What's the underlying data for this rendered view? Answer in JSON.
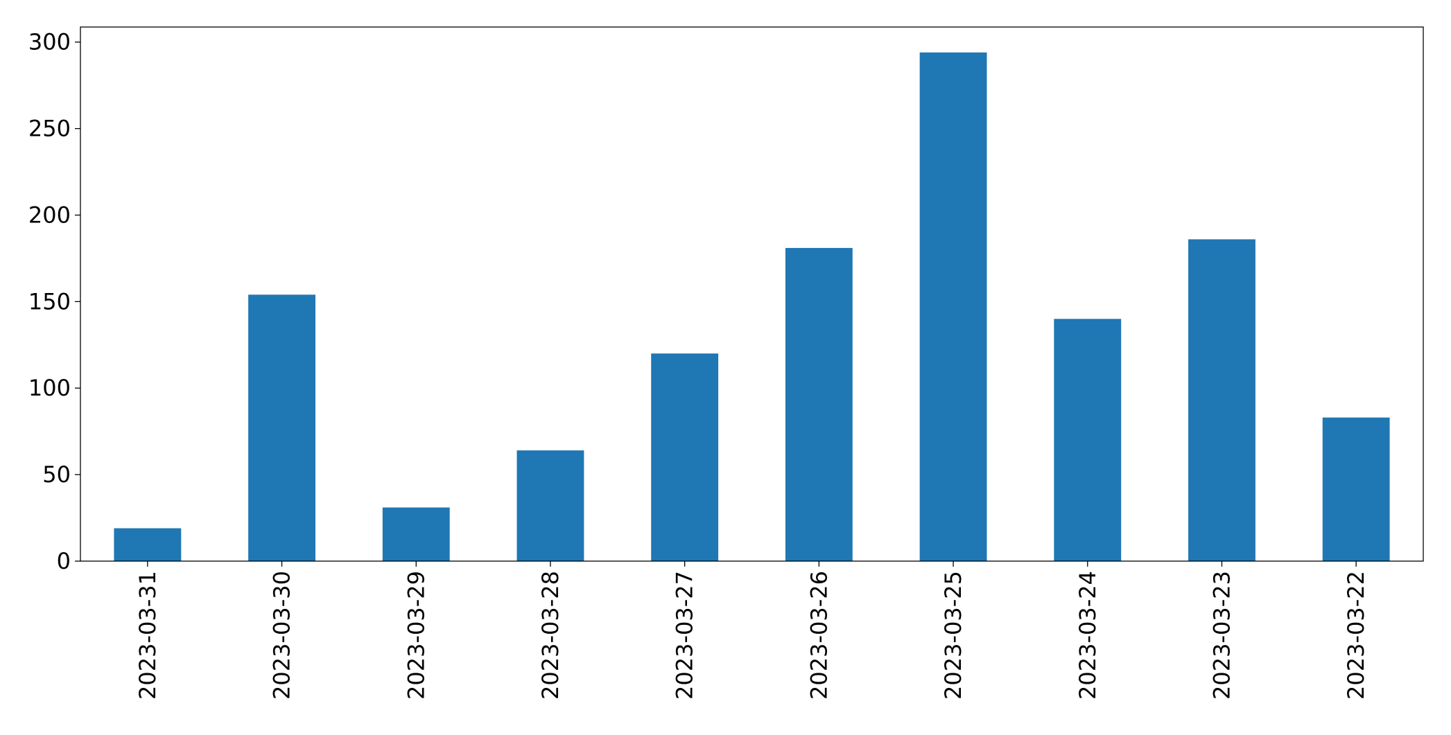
{
  "chart_data": {
    "type": "bar",
    "categories": [
      "2023-03-31",
      "2023-03-30",
      "2023-03-29",
      "2023-03-28",
      "2023-03-27",
      "2023-03-26",
      "2023-03-25",
      "2023-03-24",
      "2023-03-23",
      "2023-03-22"
    ],
    "values": [
      19,
      154,
      31,
      64,
      120,
      181,
      294,
      140,
      186,
      83
    ],
    "color": "#1f77b4",
    "ylim": [
      0,
      308.7
    ],
    "yticks": [
      0,
      50,
      100,
      150,
      200,
      250,
      300
    ],
    "grid": false
  }
}
